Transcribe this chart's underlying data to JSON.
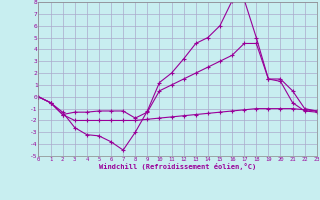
{
  "xlabel": "Windchill (Refroidissement éolien,°C)",
  "bg_color": "#c8eef0",
  "line_color": "#990099",
  "grid_color": "#aaaacc",
  "xlim": [
    0,
    23
  ],
  "ylim": [
    -5,
    8
  ],
  "xticks": [
    0,
    1,
    2,
    3,
    4,
    5,
    6,
    7,
    8,
    9,
    10,
    11,
    12,
    13,
    14,
    15,
    16,
    17,
    18,
    19,
    20,
    21,
    22,
    23
  ],
  "yticks": [
    -5,
    -4,
    -3,
    -2,
    -1,
    0,
    1,
    2,
    3,
    4,
    5,
    6,
    7,
    8
  ],
  "line1_x": [
    0,
    1,
    2,
    3,
    4,
    5,
    6,
    7,
    8,
    9,
    10,
    11,
    12,
    13,
    14,
    15,
    16,
    17,
    18,
    19,
    20,
    21,
    22,
    23
  ],
  "line1_y": [
    0.0,
    -0.5,
    -1.3,
    -2.6,
    -3.2,
    -3.3,
    -3.8,
    -4.5,
    -3.0,
    -1.2,
    1.2,
    2.0,
    3.2,
    4.5,
    5.0,
    6.0,
    8.1,
    8.2,
    5.0,
    1.5,
    1.3,
    -0.5,
    -1.2,
    -1.3
  ],
  "line2_x": [
    0,
    1,
    2,
    3,
    4,
    5,
    6,
    7,
    8,
    9,
    10,
    11,
    12,
    13,
    14,
    15,
    16,
    17,
    18,
    19,
    20,
    21,
    22,
    23
  ],
  "line2_y": [
    0.0,
    -0.5,
    -1.5,
    -1.3,
    -1.3,
    -1.2,
    -1.2,
    -1.2,
    -1.8,
    -1.3,
    0.5,
    1.0,
    1.5,
    2.0,
    2.5,
    3.0,
    3.5,
    4.5,
    4.5,
    1.5,
    1.5,
    0.5,
    -1.0,
    -1.2
  ],
  "line3_x": [
    0,
    1,
    2,
    3,
    4,
    5,
    6,
    7,
    8,
    9,
    10,
    11,
    12,
    13,
    14,
    15,
    16,
    17,
    18,
    19,
    20,
    21,
    22,
    23
  ],
  "line3_y": [
    0.0,
    -0.5,
    -1.5,
    -2.0,
    -2.0,
    -2.0,
    -2.0,
    -2.0,
    -2.0,
    -1.9,
    -1.8,
    -1.7,
    -1.6,
    -1.5,
    -1.4,
    -1.3,
    -1.2,
    -1.1,
    -1.0,
    -1.0,
    -1.0,
    -1.0,
    -1.1,
    -1.2
  ]
}
